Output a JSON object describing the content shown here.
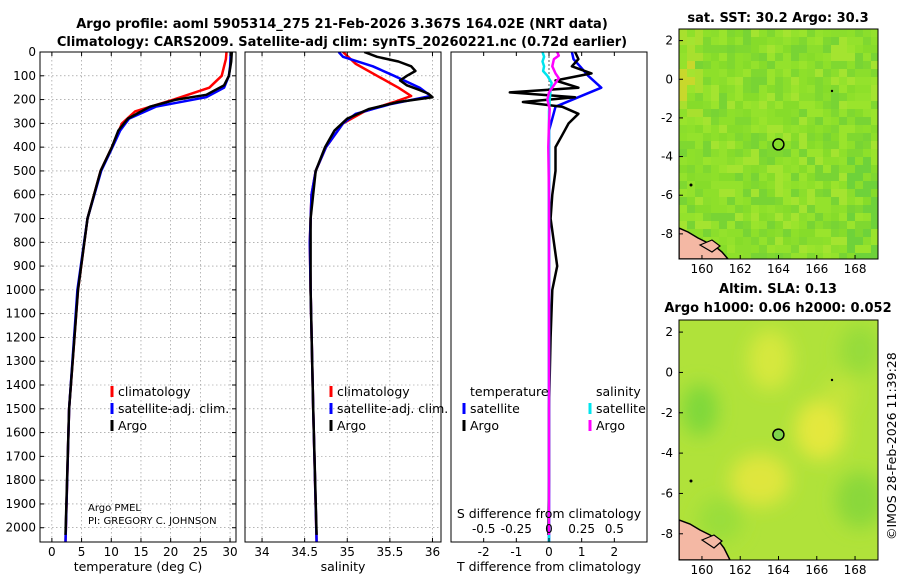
{
  "titles": {
    "line1": "Argo profile: aoml 5905314_275 21-Feb-2026 3.367S 164.02E (NRT data)",
    "line2": "Climatology: CARS2009. Satellite-adj clim: synTS_20260221.nc (0.72d earlier)"
  },
  "map_titles": {
    "sst": "sat. SST: 30.2 Argo: 30.3",
    "sla": "Altim. SLA: 0.13",
    "height": "Argo h1000: 0.06 h2000: 0.052"
  },
  "credit": {
    "line1": "Argo PMEL",
    "line2": "PI: GREGORY C. JOHNSON"
  },
  "timestamp": "©IMOS 28-Feb-2026 11:39:28",
  "legends": {
    "temp": [
      "climatology",
      "satellite-adj. clim.",
      "Argo"
    ],
    "sal": [
      "climatology",
      "satellite-adj. clim.",
      "Argo"
    ],
    "diff_temp_header": "temperature",
    "diff_sal_header": "salinity",
    "diff_temp": [
      "satellite",
      "Argo"
    ],
    "diff_sal": [
      "satellite",
      "Argo"
    ]
  },
  "colors": {
    "climatology": "#ff0000",
    "satellite": "#0000ff",
    "argo": "#000000",
    "sal_satellite": "#00e5ee",
    "sal_argo": "#ff00ff",
    "map_base": "#8ee02a",
    "land": "#f4b8a4"
  },
  "chart_data": [
    {
      "type": "line",
      "name": "temperature-profile",
      "xlabel": "temperature (deg C)",
      "ylabel": "",
      "xlim": [
        -2,
        31
      ],
      "ylim": [
        2060,
        0
      ],
      "xticks": [
        "0",
        "5",
        "10",
        "15",
        "20",
        "25",
        "30"
      ],
      "yticks": [
        "0",
        "100",
        "200",
        "300",
        "400",
        "500",
        "600",
        "700",
        "800",
        "900",
        "1000",
        "1100",
        "1200",
        "1300",
        "1400",
        "1500",
        "1600",
        "1700",
        "1800",
        "1900",
        "2000"
      ],
      "grid": true,
      "legend_position": "lower-right",
      "series": [
        {
          "name": "climatology",
          "depth": [
            0,
            30,
            100,
            150,
            200,
            250,
            300,
            400,
            500,
            700,
            1000,
            1500,
            2060
          ],
          "values": [
            29.4,
            29.3,
            28.6,
            26.5,
            20.5,
            14,
            11.8,
            10.1,
            8.2,
            6.0,
            4.4,
            2.9,
            2.3
          ]
        },
        {
          "name": "satellite-adj. clim.",
          "depth": [
            0,
            60,
            100,
            150,
            190,
            230,
            280,
            330,
            400,
            500,
            700,
            1000,
            1500,
            2060
          ],
          "values": [
            30.1,
            30.0,
            29.8,
            29.0,
            26.0,
            17.5,
            13,
            11.5,
            10.2,
            8.3,
            6.0,
            4.3,
            2.9,
            2.3
          ]
        },
        {
          "name": "Argo",
          "depth": [
            0,
            40,
            100,
            140,
            180,
            200,
            230,
            280,
            330,
            400,
            500,
            700,
            1000,
            1500,
            2030
          ],
          "values": [
            30.3,
            30.2,
            29.8,
            29.0,
            26.0,
            21,
            16.5,
            12.8,
            11.2,
            10.1,
            8.2,
            6.0,
            4.4,
            2.9,
            2.3
          ]
        }
      ]
    },
    {
      "type": "line",
      "name": "salinity-profile",
      "xlabel": "salinity",
      "ylabel": "",
      "xlim": [
        33.8,
        36.1
      ],
      "ylim": [
        2060,
        0
      ],
      "xticks": [
        "34",
        "34.5",
        "35",
        "35.5",
        "36"
      ],
      "grid": true,
      "legend_position": "lower-right",
      "series": [
        {
          "name": "climatology",
          "depth": [
            0,
            50,
            100,
            150,
            185,
            210,
            250,
            300,
            400,
            500,
            600,
            800,
            1000,
            1500,
            2060
          ],
          "values": [
            34.95,
            35.1,
            35.35,
            35.6,
            35.75,
            35.55,
            35.2,
            34.95,
            34.75,
            34.63,
            34.58,
            34.56,
            34.57,
            34.6,
            34.64
          ]
        },
        {
          "name": "satellite-adj. clim.",
          "depth": [
            0,
            20,
            60,
            100,
            150,
            185,
            220,
            260,
            300,
            400,
            500,
            600,
            800,
            1000,
            1500,
            2060
          ],
          "values": [
            34.9,
            34.95,
            35.3,
            35.55,
            35.85,
            35.98,
            35.5,
            35.1,
            34.95,
            34.75,
            34.63,
            34.58,
            34.56,
            34.57,
            34.6,
            34.64
          ]
        },
        {
          "name": "Argo",
          "depth": [
            0,
            20,
            40,
            60,
            80,
            100,
            120,
            140,
            160,
            175,
            190,
            210,
            240,
            280,
            330,
            400,
            500,
            700,
            1000,
            1500,
            2030
          ],
          "values": [
            35.2,
            35.35,
            35.6,
            35.75,
            35.8,
            35.7,
            35.62,
            35.7,
            35.85,
            35.95,
            36.0,
            35.6,
            35.25,
            35.0,
            34.85,
            34.74,
            34.63,
            34.57,
            34.57,
            34.6,
            34.64
          ]
        }
      ]
    },
    {
      "type": "line",
      "name": "difference-profile",
      "xlabel": "T difference from climatology",
      "xlabel_top": "S difference from climatology",
      "xlim": [
        -3,
        3
      ],
      "ylim": [
        2060,
        0
      ],
      "xticks": [
        "-2",
        "-1",
        "0",
        "1",
        "2"
      ],
      "xticks_top": [
        "-0.5",
        "-0.25",
        "0",
        "0.25",
        "0.5"
      ],
      "grid": false,
      "legend_position": "lower",
      "series": [
        {
          "name": "T satellite",
          "depth": [
            0,
            30,
            60,
            100,
            150,
            190,
            230,
            280,
            330,
            400,
            500,
            800,
            1000,
            1500,
            2060
          ],
          "values": [
            0.7,
            0.75,
            0.95,
            1.2,
            1.6,
            0.9,
            0.2,
            0.1,
            0.0,
            0.0,
            0.0,
            0.0,
            0.0,
            0.0,
            0.0
          ]
        },
        {
          "name": "T Argo",
          "depth": [
            0,
            30,
            60,
            90,
            120,
            150,
            170,
            190,
            210,
            230,
            260,
            300,
            350,
            400,
            500,
            600,
            700,
            800,
            900,
            1000,
            1200,
            1500,
            1800,
            2030
          ],
          "values": [
            0.8,
            0.9,
            0.7,
            1.3,
            0.2,
            0.9,
            -1.2,
            0.8,
            -0.8,
            0.4,
            0.9,
            0.6,
            0.4,
            0.2,
            0.2,
            0.1,
            0.05,
            0.15,
            0.25,
            0.1,
            0.05,
            0.0,
            0.0,
            -0.02
          ]
        },
        {
          "name": "S satellite",
          "depth": [
            0,
            20,
            40,
            60,
            80,
            100,
            130,
            160,
            200,
            250,
            300,
            400,
            600,
            1000,
            1500,
            2060
          ],
          "values": [
            -0.2,
            -0.15,
            -0.2,
            -0.15,
            -0.18,
            -0.05,
            0.08,
            0.05,
            0.02,
            0.0,
            0.0,
            0.0,
            0.0,
            0.0,
            0.0,
            0.0
          ]
        },
        {
          "name": "S Argo",
          "depth": [
            0,
            15,
            30,
            60,
            90,
            110,
            140,
            170,
            200,
            240,
            300,
            400,
            600,
            1000,
            1500,
            2030
          ],
          "values": [
            0.25,
            0.3,
            0.15,
            0.1,
            0.2,
            0.3,
            0.15,
            0.0,
            -0.05,
            0.02,
            0.0,
            -0.02,
            0.0,
            0.0,
            0.0,
            0.0
          ]
        }
      ]
    },
    {
      "type": "heatmap",
      "name": "sst-map",
      "title": "sat. SST: 30.2 Argo: 30.3",
      "xlim": [
        158.8,
        169.2
      ],
      "ylim": [
        -9.3,
        2.6
      ],
      "xticks": [
        "160",
        "162",
        "164",
        "166",
        "168"
      ],
      "yticks": [
        "2",
        "0",
        "-2",
        "-4",
        "-6",
        "-8"
      ],
      "marker": {
        "lon": 164.02,
        "lat": -3.367
      }
    },
    {
      "type": "heatmap",
      "name": "sla-map",
      "title": "Argo h1000: 0.06 h2000: 0.052",
      "xlim": [
        158.8,
        169.2
      ],
      "ylim": [
        -9.3,
        2.6
      ],
      "xticks": [
        "160",
        "162",
        "164",
        "166",
        "168"
      ],
      "yticks": [
        "2",
        "0",
        "-2",
        "-4",
        "-6",
        "-8"
      ],
      "marker": {
        "lon": 164.02,
        "lat": -3.367
      }
    }
  ]
}
